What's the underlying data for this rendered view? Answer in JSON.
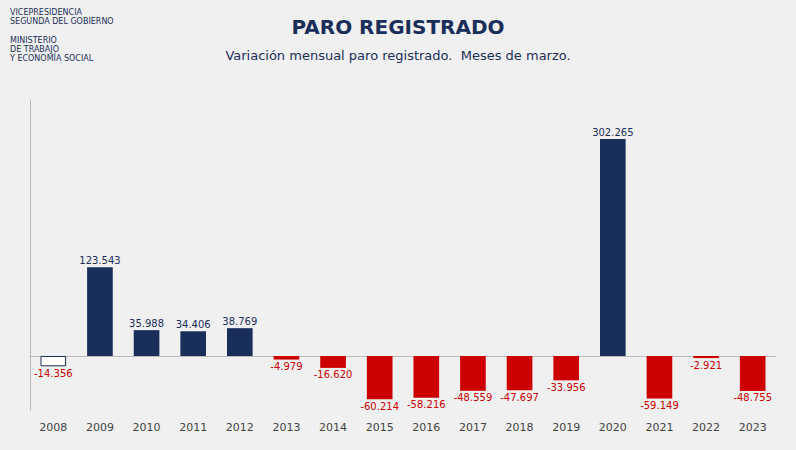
{
  "chart_data": {
    "type": "bar",
    "title": "PARO REGISTRADO",
    "subtitle": "Variación mensual paro registrado.  Meses de marzo.",
    "annotations": [
      "VICEPRESIDENCIA\nSEGUNDA DEL GOBIERNO",
      "MINISTERIO\nDE TRABAJO\nY ECONOMÍA SOCIAL"
    ],
    "categories": [
      "2008",
      "2009",
      "2010",
      "2011",
      "2012",
      "2013",
      "2014",
      "2015",
      "2016",
      "2017",
      "2018",
      "2019",
      "2020",
      "2021",
      "2022",
      "2023"
    ],
    "values": [
      -14356,
      123543,
      35988,
      34406,
      38769,
      -4979,
      -16620,
      -60214,
      -58216,
      -48559,
      -47697,
      -33956,
      302265,
      -59149,
      -2921,
      -48755
    ],
    "value_labels": [
      "-14.356",
      "123.543",
      "35.988",
      "34.406",
      "38.769",
      "-4.979",
      "-16.620",
      "-60.214",
      "-58.216",
      "-48.559",
      "-47.697",
      "-33.956",
      "302.265",
      "-59.149",
      "-2.921",
      "-48.755"
    ],
    "colors": [
      "#ffffff",
      "#1a2e5a",
      "#1a2e5a",
      "#1a2e5a",
      "#1a2e5a",
      "#cc0000",
      "#cc0000",
      "#cc0000",
      "#cc0000",
      "#cc0000",
      "#cc0000",
      "#cc0000",
      "#1a2e5a",
      "#cc0000",
      "#cc0000",
      "#cc0000"
    ],
    "ylim": [
      -75267.5,
      356672.7
    ],
    "data_labels": true,
    "tick_labels": "x",
    "grid": false
  }
}
